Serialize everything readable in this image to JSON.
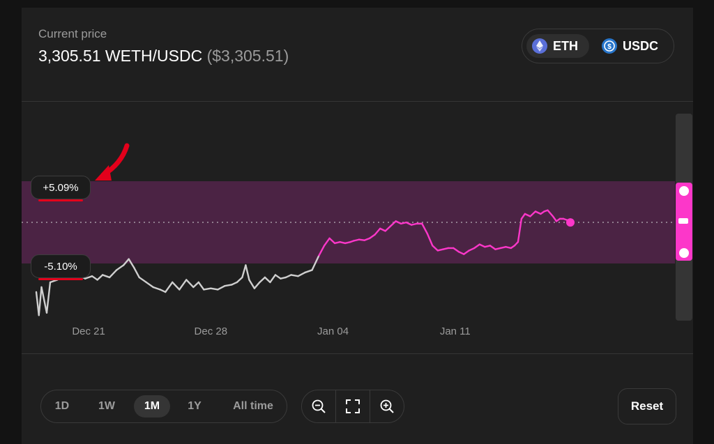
{
  "header": {
    "price_label": "Current price",
    "price_value": "3,305.51 WETH/USDC",
    "price_usd": "($3,305.51)"
  },
  "tokens": [
    {
      "symbol": "ETH",
      "icon": "eth-icon",
      "selected": true
    },
    {
      "symbol": "USDC",
      "icon": "usdc-icon",
      "selected": false
    }
  ],
  "range": {
    "upper_label": "+5.09%",
    "lower_label": "-5.10%",
    "upper_pct": 5.09,
    "lower_pct": -5.1,
    "band_color": "#4b2344",
    "in_range_color": "#fc37c9",
    "out_range_color": "#cfcfcf"
  },
  "chart_data": {
    "type": "line",
    "title": "",
    "xlabel": "",
    "ylabel": "",
    "x_ticks": [
      "Dec 21",
      "Dec 28",
      "Jan 04",
      "Jan 11"
    ],
    "x_tick_days": [
      3,
      10,
      17,
      24
    ],
    "current_price": 3305.51,
    "ylim": [
      2880,
      3600
    ],
    "series": [
      {
        "values": [
          [
            0.0,
            3020
          ],
          [
            0.15,
            2925
          ],
          [
            0.3,
            3040
          ],
          [
            0.6,
            2935
          ],
          [
            0.8,
            3060
          ],
          [
            1.2,
            3070
          ],
          [
            1.6,
            3085
          ],
          [
            2.0,
            3080
          ],
          [
            2.4,
            3090
          ],
          [
            2.8,
            3075
          ],
          [
            3.2,
            3085
          ],
          [
            3.5,
            3070
          ],
          [
            3.8,
            3090
          ],
          [
            4.2,
            3080
          ],
          [
            4.6,
            3110
          ],
          [
            5.0,
            3130
          ],
          [
            5.3,
            3155
          ],
          [
            5.6,
            3120
          ],
          [
            5.9,
            3080
          ],
          [
            6.3,
            3060
          ],
          [
            6.7,
            3040
          ],
          [
            7.1,
            3030
          ],
          [
            7.4,
            3020
          ],
          [
            7.8,
            3060
          ],
          [
            8.2,
            3030
          ],
          [
            8.6,
            3070
          ],
          [
            9.0,
            3040
          ],
          [
            9.3,
            3060
          ],
          [
            9.6,
            3030
          ],
          [
            10.0,
            3035
          ],
          [
            10.4,
            3030
          ],
          [
            10.8,
            3045
          ],
          [
            11.2,
            3050
          ],
          [
            11.5,
            3060
          ],
          [
            11.8,
            3080
          ],
          [
            12.0,
            3130
          ],
          [
            12.2,
            3070
          ],
          [
            12.5,
            3035
          ],
          [
            12.8,
            3060
          ],
          [
            13.1,
            3080
          ],
          [
            13.4,
            3060
          ],
          [
            13.7,
            3090
          ],
          [
            14.0,
            3075
          ],
          [
            14.3,
            3080
          ],
          [
            14.6,
            3090
          ],
          [
            15.0,
            3085
          ],
          [
            15.4,
            3100
          ],
          [
            15.8,
            3110
          ],
          [
            16.2,
            3170
          ],
          [
            16.5,
            3210
          ],
          [
            16.8,
            3240
          ],
          [
            17.1,
            3220
          ],
          [
            17.4,
            3225
          ],
          [
            17.7,
            3220
          ],
          [
            18.0,
            3225
          ],
          [
            18.2,
            3230
          ],
          [
            18.5,
            3235
          ],
          [
            18.8,
            3232
          ],
          [
            19.1,
            3240
          ],
          [
            19.4,
            3255
          ],
          [
            19.7,
            3280
          ],
          [
            20.0,
            3270
          ],
          [
            20.3,
            3290
          ],
          [
            20.6,
            3310
          ],
          [
            20.9,
            3300
          ],
          [
            21.2,
            3305
          ],
          [
            21.5,
            3295
          ],
          [
            21.8,
            3300
          ],
          [
            22.1,
            3300
          ],
          [
            22.4,
            3260
          ],
          [
            22.7,
            3210
          ],
          [
            23.0,
            3190
          ],
          [
            23.3,
            3195
          ],
          [
            23.6,
            3200
          ],
          [
            23.9,
            3200
          ],
          [
            24.2,
            3185
          ],
          [
            24.5,
            3175
          ],
          [
            24.8,
            3190
          ],
          [
            25.1,
            3200
          ],
          [
            25.4,
            3215
          ],
          [
            25.7,
            3205
          ],
          [
            26.0,
            3210
          ],
          [
            26.3,
            3195
          ],
          [
            26.6,
            3200
          ],
          [
            26.9,
            3205
          ],
          [
            27.2,
            3200
          ],
          [
            27.4,
            3210
          ],
          [
            27.6,
            3225
          ],
          [
            27.8,
            3320
          ],
          [
            28.0,
            3340
          ],
          [
            28.3,
            3330
          ],
          [
            28.6,
            3350
          ],
          [
            28.9,
            3340
          ],
          [
            29.1,
            3350
          ],
          [
            29.3,
            3355
          ],
          [
            29.6,
            3330
          ],
          [
            29.8,
            3310
          ],
          [
            30.0,
            3320
          ],
          [
            30.2,
            3320
          ],
          [
            30.4,
            3315
          ],
          [
            30.6,
            3305
          ]
        ]
      }
    ],
    "grid": false
  },
  "timeframes": [
    {
      "label": "1D",
      "active": false
    },
    {
      "label": "1W",
      "active": false
    },
    {
      "label": "1M",
      "active": true
    },
    {
      "label": "1Y",
      "active": false
    },
    {
      "label": "All time",
      "active": false
    }
  ],
  "zoom": {
    "zoom_out_icon": "zoom-out-icon",
    "fullscreen_icon": "fullscreen-icon",
    "zoom_in_icon": "zoom-in-icon"
  },
  "reset_label": "Reset"
}
